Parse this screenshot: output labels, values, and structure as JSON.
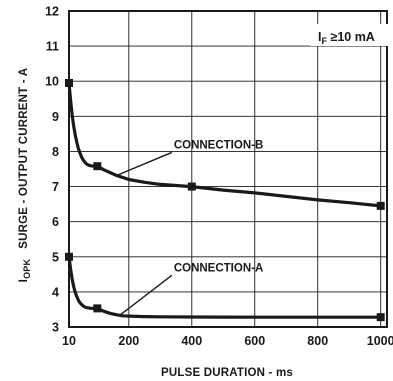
{
  "chart_data": {
    "type": "line",
    "title": "",
    "xlabel": "PULSE DURATION - ms",
    "ylabel_prefix": "I",
    "ylabel_sub": "OPK",
    "ylabel_main": "SURGE - OUTPUT CURRENT - A",
    "xlim": [
      10,
      1020
    ],
    "ylim": [
      3,
      12
    ],
    "xticks": [
      10,
      200,
      400,
      600,
      800,
      1000
    ],
    "yticks": [
      3,
      4,
      5,
      6,
      7,
      8,
      9,
      10,
      11,
      12
    ],
    "grid": true,
    "condition": {
      "prefix": "I",
      "sub": "F",
      "text": " ≥10 mA"
    },
    "series": [
      {
        "name": "CONNECTION-B",
        "x": [
          10,
          100,
          400,
          1000
        ],
        "y": [
          9.95,
          7.58,
          7.0,
          6.45
        ],
        "curve_x": [
          10,
          15,
          20,
          25,
          30,
          35,
          40,
          45,
          50,
          55,
          60,
          65,
          70,
          75,
          80,
          85,
          90,
          95,
          100,
          120,
          140,
          160,
          180,
          200,
          250,
          300,
          350,
          400,
          500,
          600,
          700,
          800,
          900,
          1000
        ],
        "curve_y": [
          9.95,
          9.45,
          9.05,
          8.72,
          8.46,
          8.25,
          8.08,
          7.95,
          7.84,
          7.76,
          7.7,
          7.65,
          7.62,
          7.6,
          7.59,
          7.585,
          7.582,
          7.58,
          7.58,
          7.48,
          7.4,
          7.32,
          7.26,
          7.2,
          7.12,
          7.06,
          7.03,
          7.0,
          6.9,
          6.82,
          6.72,
          6.62,
          6.54,
          6.45
        ],
        "label_at": {
          "x": 200,
          "y": 8.0
        }
      },
      {
        "name": "CONNECTION-A",
        "x": [
          10,
          100,
          1000
        ],
        "y": [
          5.0,
          3.53,
          3.28
        ],
        "curve_x": [
          10,
          15,
          20,
          25,
          30,
          35,
          40,
          45,
          50,
          55,
          60,
          65,
          70,
          75,
          80,
          85,
          90,
          95,
          100,
          120,
          140,
          160,
          180,
          200,
          250,
          300,
          400,
          500,
          600,
          700,
          800,
          900,
          1000
        ],
        "curve_y": [
          5.0,
          4.65,
          4.37,
          4.15,
          3.98,
          3.86,
          3.76,
          3.69,
          3.64,
          3.6,
          3.57,
          3.555,
          3.545,
          3.538,
          3.534,
          3.532,
          3.531,
          3.53,
          3.53,
          3.45,
          3.39,
          3.35,
          3.32,
          3.31,
          3.295,
          3.29,
          3.285,
          3.282,
          3.28,
          3.28,
          3.28,
          3.28,
          3.28
        ],
        "label_at": {
          "x": 200,
          "y": 4.5
        }
      }
    ]
  }
}
